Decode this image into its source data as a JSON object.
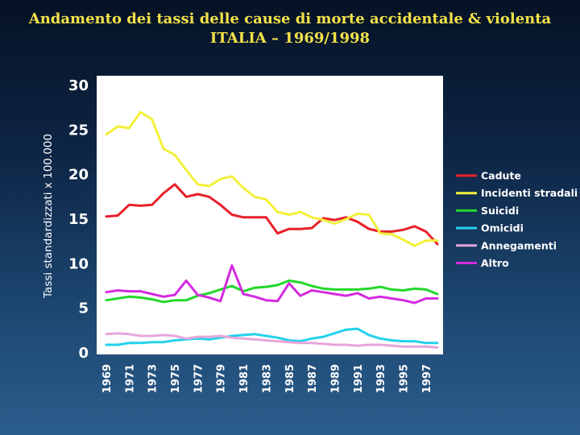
{
  "chart_data": {
    "type": "line",
    "title_line1": "Andamento dei tassi delle cause di morte accidentale & violenta",
    "title_line2": "ITALIA – 1969/1998",
    "ylabel": "Tassi standardizzati x 100.000",
    "xlabel": "",
    "ylim": [
      0,
      30
    ],
    "yticks": [
      "0",
      "5",
      "10",
      "15",
      "20",
      "25",
      "30"
    ],
    "yticks_values": [
      0,
      5,
      10,
      15,
      20,
      25,
      30
    ],
    "x": [
      1969,
      1970,
      1971,
      1972,
      1973,
      1974,
      1975,
      1976,
      1977,
      1978,
      1979,
      1980,
      1981,
      1982,
      1983,
      1984,
      1985,
      1986,
      1987,
      1988,
      1989,
      1990,
      1991,
      1992,
      1993,
      1994,
      1995,
      1996,
      1997,
      1998
    ],
    "xticks": [
      "1969",
      "1971",
      "1973",
      "1975",
      "1977",
      "1979",
      "1981",
      "1983",
      "1985",
      "1987",
      "1989",
      "1991",
      "1993",
      "1995",
      "1997"
    ],
    "grid": false,
    "legend_position": "right",
    "series": [
      {
        "name": "Cadute",
        "color": "#e8202a",
        "values": [
          15.3,
          15.4,
          16.6,
          16.5,
          16.6,
          17.9,
          18.9,
          17.5,
          17.8,
          17.5,
          16.6,
          15.5,
          15.2,
          15.2,
          15.2,
          13.4,
          13.9,
          13.9,
          14.0,
          15.1,
          14.9,
          15.2,
          14.7,
          13.9,
          13.6,
          13.6,
          13.8,
          14.2,
          13.6,
          12.2
        ]
      },
      {
        "name": "Incidenti stradali",
        "color": "#f3f03a",
        "values": [
          24.5,
          25.4,
          25.2,
          27.0,
          26.2,
          22.9,
          22.2,
          20.5,
          18.9,
          18.7,
          19.5,
          19.8,
          18.5,
          17.5,
          17.2,
          15.8,
          15.5,
          15.8,
          15.2,
          14.9,
          14.5,
          15.0,
          15.6,
          15.5,
          13.4,
          13.3,
          12.7,
          12.0,
          12.6,
          12.6
        ]
      },
      {
        "name": "Suicidi",
        "color": "#22d82a",
        "values": [
          5.9,
          6.1,
          6.3,
          6.2,
          6.0,
          5.7,
          5.9,
          5.9,
          6.4,
          6.7,
          7.1,
          7.5,
          6.9,
          7.3,
          7.4,
          7.6,
          8.1,
          7.9,
          7.5,
          7.2,
          7.1,
          7.1,
          7.1,
          7.2,
          7.4,
          7.1,
          7.0,
          7.2,
          7.1,
          6.6
        ]
      },
      {
        "name": "Omicidi",
        "color": "#23d2ec",
        "values": [
          0.9,
          0.9,
          1.1,
          1.1,
          1.2,
          1.2,
          1.4,
          1.5,
          1.6,
          1.5,
          1.7,
          1.9,
          2.0,
          2.1,
          1.9,
          1.7,
          1.4,
          1.3,
          1.6,
          1.8,
          2.2,
          2.6,
          2.7,
          2.0,
          1.6,
          1.4,
          1.3,
          1.3,
          1.1,
          1.1
        ]
      },
      {
        "name": "Annegamenti",
        "color": "#e6a6da",
        "values": [
          2.1,
          2.2,
          2.1,
          1.9,
          1.9,
          2.0,
          1.9,
          1.6,
          1.8,
          1.8,
          1.9,
          1.7,
          1.6,
          1.5,
          1.4,
          1.3,
          1.2,
          1.1,
          1.1,
          1.0,
          0.9,
          0.9,
          0.8,
          0.9,
          0.9,
          0.8,
          0.7,
          0.7,
          0.7,
          0.6
        ]
      },
      {
        "name": "Altro",
        "color": "#d42ae0",
        "values": [
          6.8,
          7.0,
          6.9,
          6.9,
          6.6,
          6.3,
          6.5,
          8.1,
          6.5,
          6.2,
          5.8,
          9.8,
          6.6,
          6.3,
          5.9,
          5.8,
          7.8,
          6.4,
          7.0,
          6.8,
          6.6,
          6.4,
          6.7,
          6.1,
          6.3,
          6.1,
          5.9,
          5.6,
          6.1,
          6.1
        ]
      }
    ]
  }
}
